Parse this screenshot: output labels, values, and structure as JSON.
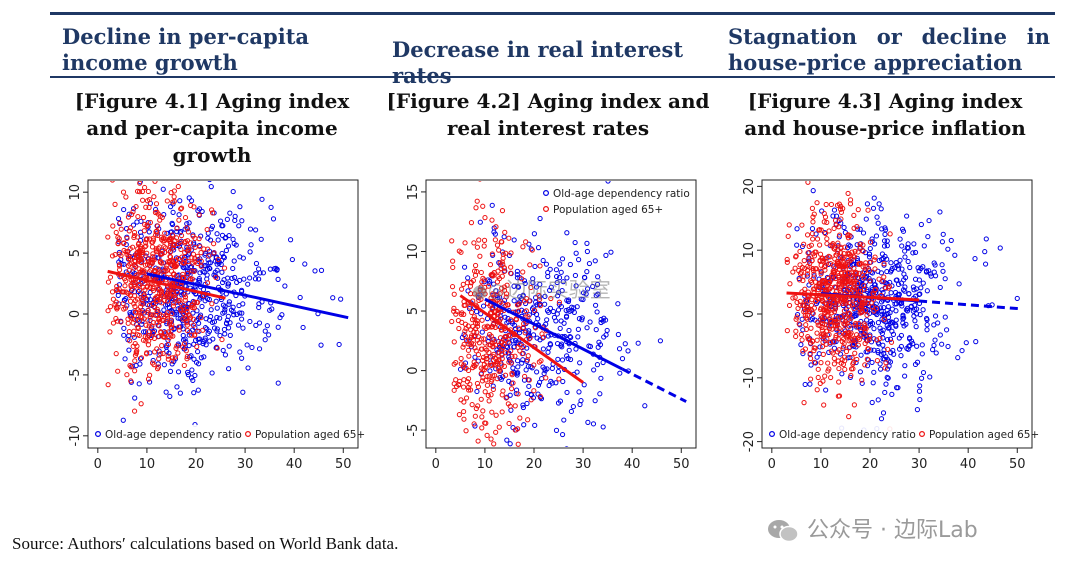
{
  "headers": {
    "col1": "Decline in per-capita income growth",
    "col2": "Decrease in real interest rates",
    "col3": "Stagnation or decline in house-price appreciation"
  },
  "colors": {
    "header_text": "#1f3864",
    "series_blue": "#0000e6",
    "series_red": "#ee1111"
  },
  "source": "Source: Authors′ calculations based on World Bank data.",
  "watermark": {
    "center": "边际实验室",
    "corner": "公众号 · 边际Lab"
  },
  "chart_data": [
    {
      "type": "scatter",
      "title": "[Figure 4.1] Aging index and per-capita income growth",
      "xlim": [
        -2,
        53
      ],
      "ylim": [
        -11,
        11
      ],
      "xticks": [
        0,
        10,
        20,
        30,
        40,
        50
      ],
      "yticks": [
        -10,
        -5,
        0,
        5,
        10
      ],
      "legend": {
        "placement": "bottom",
        "entries": [
          "Old-age dependency ratio",
          "Population aged 65+"
        ]
      },
      "series": [
        {
          "name": "Old-age dependency ratio",
          "color": "#0000e6",
          "x_range": [
            4,
            50
          ],
          "x_center": 18,
          "x_spread": 9,
          "y_center": 2.0,
          "y_spread": 3.6,
          "count": 620,
          "fit": {
            "x1": 10,
            "y1": 3.3,
            "x2": 51,
            "y2": -0.3,
            "style": "solid"
          }
        },
        {
          "name": "Population aged 65+",
          "color": "#ee1111",
          "x_range": [
            2,
            26
          ],
          "x_center": 12,
          "x_spread": 5,
          "y_center": 2.8,
          "y_spread": 3.6,
          "count": 620,
          "fit": {
            "x1": 2,
            "y1": 3.5,
            "x2": 26,
            "y2": 1.3,
            "style": "solid"
          }
        }
      ]
    },
    {
      "type": "scatter",
      "title": "[Figure 4.2] Aging index and real interest rates",
      "xlim": [
        -2,
        53
      ],
      "ylim": [
        -6.5,
        16
      ],
      "xticks": [
        0,
        10,
        20,
        30,
        40,
        50
      ],
      "yticks": [
        -5,
        0,
        5,
        10,
        15
      ],
      "legend": {
        "placement": "top-right",
        "entries": [
          "Old-age dependency ratio",
          "Population aged 65+"
        ]
      },
      "series": [
        {
          "name": "Old-age dependency ratio",
          "color": "#0000e6",
          "x_range": [
            5,
            48
          ],
          "x_center": 20,
          "x_spread": 8,
          "y_center": 3.5,
          "y_spread": 3.8,
          "count": 420,
          "fit": {
            "x1": 10,
            "y1": 6.0,
            "x2": 51,
            "y2": -2.6,
            "style": "solid-then-dashed",
            "dash_from": 38
          }
        },
        {
          "name": "Population aged 65+",
          "color": "#ee1111",
          "x_range": [
            3,
            29
          ],
          "x_center": 11,
          "x_spread": 5,
          "y_center": 3.5,
          "y_spread": 4.2,
          "count": 420,
          "fit": {
            "x1": 5,
            "y1": 6.3,
            "x2": 30,
            "y2": -1.0,
            "style": "solid"
          }
        }
      ]
    },
    {
      "type": "scatter",
      "title": "[Figure 4.3] Aging index and house-price inflation",
      "xlim": [
        -2,
        53
      ],
      "ylim": [
        -21,
        21
      ],
      "xticks": [
        0,
        10,
        20,
        30,
        40,
        50
      ],
      "yticks": [
        -20,
        -10,
        0,
        10,
        20
      ],
      "legend": {
        "placement": "bottom",
        "entries": [
          "Old-age dependency ratio",
          "Population aged 65+"
        ]
      },
      "series": [
        {
          "name": "Old-age dependency ratio",
          "color": "#0000e6",
          "x_range": [
            5,
            50
          ],
          "x_center": 20,
          "x_spread": 8,
          "y_center": 2.0,
          "y_spread": 6.5,
          "count": 620,
          "fit": {
            "x1": 10,
            "y1": 3.2,
            "x2": 51,
            "y2": 0.8,
            "style": "solid-then-dashed",
            "dash_from": 30
          }
        },
        {
          "name": "Population aged 65+",
          "color": "#ee1111",
          "x_range": [
            3,
            25
          ],
          "x_center": 13,
          "x_spread": 4.5,
          "y_center": 3.0,
          "y_spread": 6.5,
          "count": 620,
          "fit": {
            "x1": 3,
            "y1": 3.3,
            "x2": 30,
            "y2": 2.2,
            "style": "solid"
          }
        }
      ]
    }
  ]
}
